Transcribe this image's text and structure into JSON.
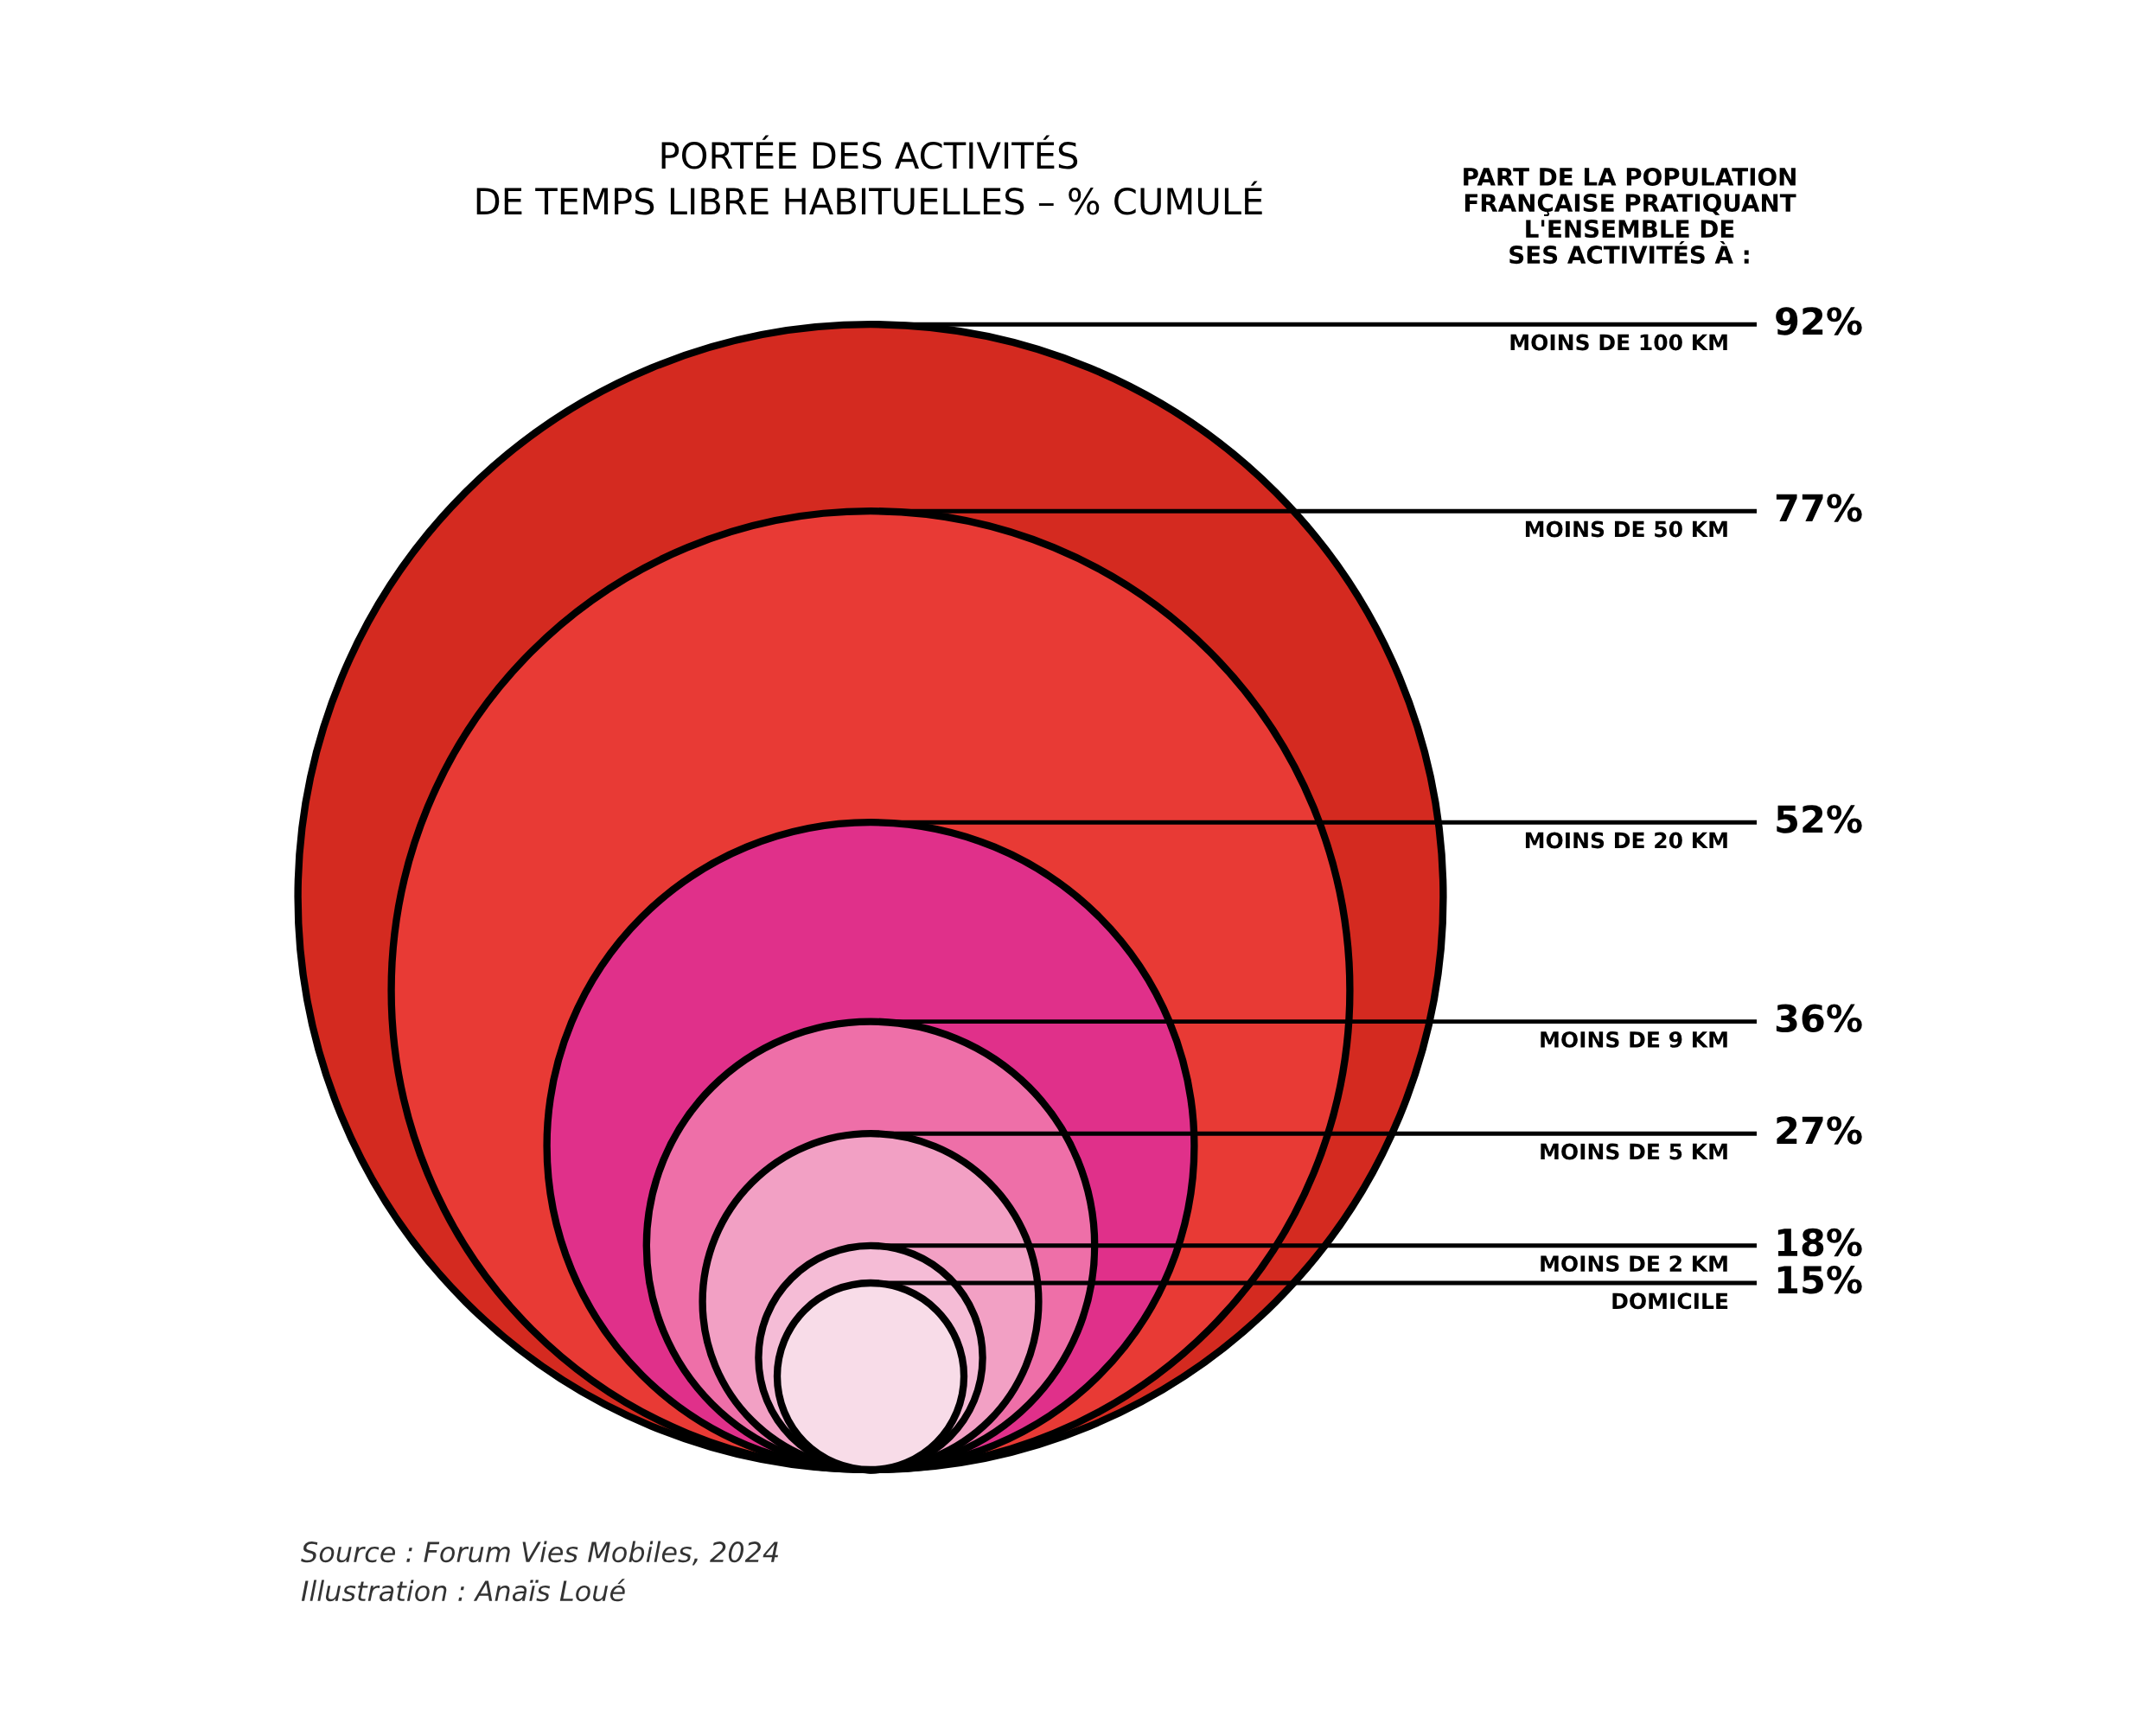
{
  "chart_data": {
    "type": "other",
    "title": "PORTÉE DES ACTIVITÉS\nDE TEMPS LIBRE HABITUELLES – % CUMULÉ",
    "legend_title": "PART DE LA POPULATION\nFRANÇAISE PRATIQUANT\nL'ENSEMBLE DE\nSES ACTIVITÉS À :",
    "categories": [
      "MOINS DE 100 KM",
      "MOINS DE 50 KM",
      "MOINS DE 20 KM",
      "MOINS DE 9 KM",
      "MOINS DE 5 KM",
      "MOINS DE 2 KM",
      "DOMICILE"
    ],
    "values": [
      92,
      77,
      52,
      36,
      27,
      18,
      15
    ],
    "value_labels": [
      "92%",
      "77%",
      "52%",
      "36%",
      "27%",
      "18%",
      "15%"
    ],
    "colors": [
      "#d42a20",
      "#e83a35",
      "#e0308a",
      "#ee6fa8",
      "#f2a0c4",
      "#f5bcd6",
      "#f8dce8"
    ],
    "annotations": [
      "Source : Forum Vies Mobiles, 2024",
      "Illustration : Anaïs Loué"
    ]
  }
}
